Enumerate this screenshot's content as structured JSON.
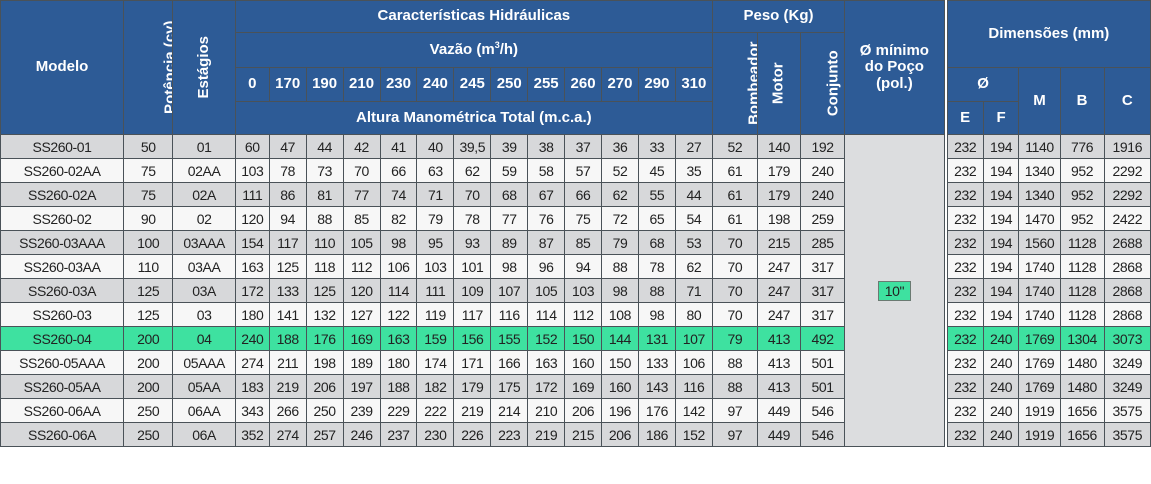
{
  "header": {
    "modelo": "Modelo",
    "potencia": "Potência (cv)",
    "estagios": "Estágios",
    "caracteristicas": "Características Hidráulicas",
    "vazao": "Vazão (m",
    "vazao_sup": "3",
    "vazao_end": "/h)",
    "altura": "Altura Manométrica Total (m.c.a.)",
    "peso": "Peso (Kg)",
    "bombeador": "Bombeador",
    "motor": "Motor",
    "conjunto": "Conjunto",
    "poco_line1": "Ø mínimo",
    "poco_line2": "do Poço",
    "poco_line3": "(pol.)",
    "dimensoes": "Dimensões (mm)",
    "diam": "Ø",
    "e": "E",
    "f": "F",
    "m": "M",
    "b": "B",
    "c": "C"
  },
  "flow_columns": [
    "0",
    "170",
    "190",
    "210",
    "230",
    "240",
    "245",
    "250",
    "255",
    "260",
    "270",
    "290",
    "310"
  ],
  "poco_value": "10\"",
  "highlight_color": "#3ee1a0",
  "rows": [
    {
      "modelo": "SS260-01",
      "potencia": "50",
      "estagios": "01",
      "alturas": [
        "60",
        "47",
        "44",
        "42",
        "41",
        "40",
        "39,5",
        "39",
        "38",
        "37",
        "36",
        "33",
        "27"
      ],
      "bombeador": "52",
      "motor": "140",
      "conjunto": "192",
      "e": "232",
      "f": "194",
      "m": "1140",
      "b": "776",
      "c": "1916"
    },
    {
      "modelo": "SS260-02AA",
      "potencia": "75",
      "estagios": "02AA",
      "alturas": [
        "103",
        "78",
        "73",
        "70",
        "66",
        "63",
        "62",
        "59",
        "58",
        "57",
        "52",
        "45",
        "35"
      ],
      "bombeador": "61",
      "motor": "179",
      "conjunto": "240",
      "e": "232",
      "f": "194",
      "m": "1340",
      "b": "952",
      "c": "2292"
    },
    {
      "modelo": "SS260-02A",
      "potencia": "75",
      "estagios": "02A",
      "alturas": [
        "111",
        "86",
        "81",
        "77",
        "74",
        "71",
        "70",
        "68",
        "67",
        "66",
        "62",
        "55",
        "44"
      ],
      "bombeador": "61",
      "motor": "179",
      "conjunto": "240",
      "e": "232",
      "f": "194",
      "m": "1340",
      "b": "952",
      "c": "2292"
    },
    {
      "modelo": "SS260-02",
      "potencia": "90",
      "estagios": "02",
      "alturas": [
        "120",
        "94",
        "88",
        "85",
        "82",
        "79",
        "78",
        "77",
        "76",
        "75",
        "72",
        "65",
        "54"
      ],
      "bombeador": "61",
      "motor": "198",
      "conjunto": "259",
      "e": "232",
      "f": "194",
      "m": "1470",
      "b": "952",
      "c": "2422"
    },
    {
      "modelo": "SS260-03AAA",
      "potencia": "100",
      "estagios": "03AAA",
      "alturas": [
        "154",
        "117",
        "110",
        "105",
        "98",
        "95",
        "93",
        "89",
        "87",
        "85",
        "79",
        "68",
        "53"
      ],
      "bombeador": "70",
      "motor": "215",
      "conjunto": "285",
      "e": "232",
      "f": "194",
      "m": "1560",
      "b": "1128",
      "c": "2688"
    },
    {
      "modelo": "SS260-03AA",
      "potencia": "110",
      "estagios": "03AA",
      "alturas": [
        "163",
        "125",
        "118",
        "112",
        "106",
        "103",
        "101",
        "98",
        "96",
        "94",
        "88",
        "78",
        "62"
      ],
      "bombeador": "70",
      "motor": "247",
      "conjunto": "317",
      "e": "232",
      "f": "194",
      "m": "1740",
      "b": "1128",
      "c": "2868"
    },
    {
      "modelo": "SS260-03A",
      "potencia": "125",
      "estagios": "03A",
      "alturas": [
        "172",
        "133",
        "125",
        "120",
        "114",
        "111",
        "109",
        "107",
        "105",
        "103",
        "98",
        "88",
        "71"
      ],
      "bombeador": "70",
      "motor": "247",
      "conjunto": "317",
      "e": "232",
      "f": "194",
      "m": "1740",
      "b": "1128",
      "c": "2868"
    },
    {
      "modelo": "SS260-03",
      "potencia": "125",
      "estagios": "03",
      "alturas": [
        "180",
        "141",
        "132",
        "127",
        "122",
        "119",
        "117",
        "116",
        "114",
        "112",
        "108",
        "98",
        "80"
      ],
      "bombeador": "70",
      "motor": "247",
      "conjunto": "317",
      "e": "232",
      "f": "194",
      "m": "1740",
      "b": "1128",
      "c": "2868"
    },
    {
      "modelo": "SS260-04",
      "potencia": "200",
      "estagios": "04",
      "alturas": [
        "240",
        "188",
        "176",
        "169",
        "163",
        "159",
        "156",
        "155",
        "152",
        "150",
        "144",
        "131",
        "107"
      ],
      "bombeador": "79",
      "motor": "413",
      "conjunto": "492",
      "e": "232",
      "f": "240",
      "m": "1769",
      "b": "1304",
      "c": "3073",
      "highlight": true
    },
    {
      "modelo": "SS260-05AAA",
      "potencia": "200",
      "estagios": "05AAA",
      "alturas": [
        "274",
        "211",
        "198",
        "189",
        "180",
        "174",
        "171",
        "166",
        "163",
        "160",
        "150",
        "133",
        "106"
      ],
      "bombeador": "88",
      "motor": "413",
      "conjunto": "501",
      "e": "232",
      "f": "240",
      "m": "1769",
      "b": "1480",
      "c": "3249"
    },
    {
      "modelo": "SS260-05AA",
      "potencia": "200",
      "estagios": "05AA",
      "alturas": [
        "183",
        "219",
        "206",
        "197",
        "188",
        "182",
        "179",
        "175",
        "172",
        "169",
        "160",
        "143",
        "116"
      ],
      "bombeador": "88",
      "motor": "413",
      "conjunto": "501",
      "e": "232",
      "f": "240",
      "m": "1769",
      "b": "1480",
      "c": "3249"
    },
    {
      "modelo": "SS260-06AA",
      "potencia": "250",
      "estagios": "06AA",
      "alturas": [
        "343",
        "266",
        "250",
        "239",
        "229",
        "222",
        "219",
        "214",
        "210",
        "206",
        "196",
        "176",
        "142"
      ],
      "bombeador": "97",
      "motor": "449",
      "conjunto": "546",
      "e": "232",
      "f": "240",
      "m": "1919",
      "b": "1656",
      "c": "3575"
    },
    {
      "modelo": "SS260-06A",
      "potencia": "250",
      "estagios": "06A",
      "alturas": [
        "352",
        "274",
        "257",
        "246",
        "237",
        "230",
        "226",
        "223",
        "219",
        "215",
        "206",
        "186",
        "152"
      ],
      "bombeador": "97",
      "motor": "449",
      "conjunto": "546",
      "e": "232",
      "f": "240",
      "m": "1919",
      "b": "1656",
      "c": "3575"
    }
  ]
}
